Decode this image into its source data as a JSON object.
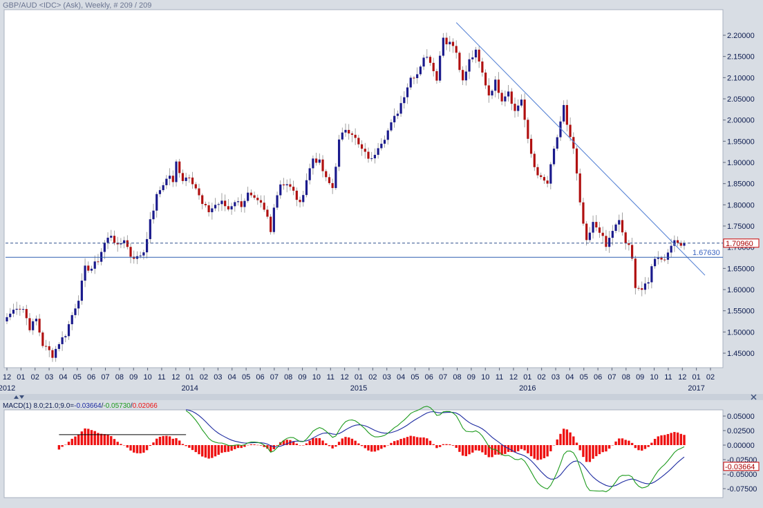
{
  "header": {
    "title": "GBP/AUD <IDC> (Ask), Weekly, # 209 / 209"
  },
  "colors": {
    "background": "#d8dde4",
    "panel": "#ffffff",
    "up_candle": "#1a1a8c",
    "down_candle": "#b01010",
    "trendline": "#5b86d6",
    "macd_line": "#1c2aa0",
    "signal_line": "#1c9a1c",
    "histogram": "#ee1111",
    "text": "#0b1a4e",
    "current_price_box": "#cc0000"
  },
  "chart_data": [
    {
      "type": "candlestick",
      "title": "GBP/AUD <IDC> (Ask), Weekly, # 209 / 209",
      "ylim": [
        1.43,
        2.24
      ],
      "y_ticks": [
        "2.20000",
        "2.15000",
        "2.10000",
        "2.05000",
        "2.00000",
        "1.95000",
        "1.90000",
        "1.85000",
        "1.80000",
        "1.75000",
        "1.70000",
        "1.65000",
        "1.60000",
        "1.55000",
        "1.50000",
        "1.45000"
      ],
      "x_month_labels": [
        "12",
        "01",
        "02",
        "03",
        "04",
        "05",
        "06",
        "07",
        "08",
        "09",
        "10",
        "11",
        "12",
        "01",
        "02",
        "03",
        "04",
        "05",
        "06",
        "07",
        "08",
        "09",
        "10",
        "11",
        "12",
        "01",
        "02",
        "03",
        "04",
        "05",
        "06",
        "07",
        "08",
        "09",
        "10",
        "11",
        "12",
        "01",
        "02",
        "03",
        "04",
        "05",
        "06",
        "07",
        "08",
        "09",
        "10",
        "11",
        "12",
        "01",
        "02"
      ],
      "x_year_labels": [
        {
          "label": "2012",
          "month_index": 0
        },
        {
          "label": "2014",
          "month_index": 13
        },
        {
          "label": "2015",
          "month_index": 25
        },
        {
          "label": "2016",
          "month_index": 37
        },
        {
          "label": "2017",
          "month_index": 49
        }
      ],
      "anchors": [
        [
          0,
          1.535
        ],
        [
          3,
          1.56
        ],
        [
          5,
          1.555
        ],
        [
          7,
          1.51
        ],
        [
          9,
          1.53
        ],
        [
          11,
          1.47
        ],
        [
          13,
          1.455
        ],
        [
          14,
          1.445
        ],
        [
          16,
          1.475
        ],
        [
          18,
          1.495
        ],
        [
          20,
          1.54
        ],
        [
          22,
          1.58
        ],
        [
          24,
          1.65
        ],
        [
          26,
          1.65
        ],
        [
          28,
          1.67
        ],
        [
          30,
          1.71
        ],
        [
          32,
          1.73
        ],
        [
          34,
          1.7
        ],
        [
          36,
          1.72
        ],
        [
          38,
          1.68
        ],
        [
          40,
          1.675
        ],
        [
          42,
          1.69
        ],
        [
          44,
          1.76
        ],
        [
          46,
          1.82
        ],
        [
          48,
          1.85
        ],
        [
          50,
          1.87
        ],
        [
          51,
          1.85
        ],
        [
          52,
          1.9
        ],
        [
          54,
          1.86
        ],
        [
          56,
          1.87
        ],
        [
          58,
          1.84
        ],
        [
          60,
          1.8
        ],
        [
          62,
          1.785
        ],
        [
          64,
          1.8
        ],
        [
          66,
          1.805
        ],
        [
          68,
          1.79
        ],
        [
          70,
          1.81
        ],
        [
          72,
          1.8
        ],
        [
          74,
          1.825
        ],
        [
          76,
          1.81
        ],
        [
          78,
          1.8
        ],
        [
          80,
          1.77
        ],
        [
          81,
          1.735
        ],
        [
          82,
          1.8
        ],
        [
          84,
          1.85
        ],
        [
          86,
          1.85
        ],
        [
          88,
          1.83
        ],
        [
          90,
          1.8
        ],
        [
          92,
          1.86
        ],
        [
          94,
          1.91
        ],
        [
          96,
          1.9
        ],
        [
          98,
          1.86
        ],
        [
          100,
          1.84
        ],
        [
          102,
          1.95
        ],
        [
          104,
          1.98
        ],
        [
          106,
          1.97
        ],
        [
          108,
          1.94
        ],
        [
          110,
          1.92
        ],
        [
          112,
          1.905
        ],
        [
          114,
          1.94
        ],
        [
          116,
          1.96
        ],
        [
          118,
          1.99
        ],
        [
          120,
          2.02
        ],
        [
          122,
          2.06
        ],
        [
          124,
          2.1
        ],
        [
          126,
          2.11
        ],
        [
          128,
          2.15
        ],
        [
          130,
          2.14
        ],
        [
          132,
          2.1
        ],
        [
          134,
          2.2
        ],
        [
          135,
          2.18
        ],
        [
          136,
          2.19
        ],
        [
          138,
          2.16
        ],
        [
          140,
          2.09
        ],
        [
          142,
          2.14
        ],
        [
          144,
          2.16
        ],
        [
          146,
          2.11
        ],
        [
          148,
          2.06
        ],
        [
          150,
          2.09
        ],
        [
          152,
          2.05
        ],
        [
          154,
          2.07
        ],
        [
          156,
          2.02
        ],
        [
          158,
          2.05
        ],
        [
          160,
          1.95
        ],
        [
          162,
          1.89
        ],
        [
          164,
          1.86
        ],
        [
          166,
          1.85
        ],
        [
          168,
          1.93
        ],
        [
          170,
          1.99
        ],
        [
          171,
          2.03
        ],
        [
          172,
          1.99
        ],
        [
          174,
          1.93
        ],
        [
          175,
          1.87
        ],
        [
          176,
          1.8
        ],
        [
          178,
          1.71
        ],
        [
          180,
          1.755
        ],
        [
          182,
          1.74
        ],
        [
          184,
          1.7
        ],
        [
          186,
          1.74
        ],
        [
          188,
          1.76
        ],
        [
          190,
          1.71
        ],
        [
          191,
          1.7
        ],
        [
          192,
          1.67
        ],
        [
          193,
          1.61
        ],
        [
          195,
          1.6
        ],
        [
          197,
          1.615
        ],
        [
          198,
          1.66
        ],
        [
          200,
          1.68
        ],
        [
          202,
          1.67
        ],
        [
          204,
          1.71
        ]
      ],
      "trendline": {
        "start": [
          138,
          2.23
        ],
        "end": [
          208,
          1.66
        ]
      },
      "horizontal_line": {
        "value": 1.6763,
        "label": "1.67630"
      },
      "current_price": {
        "value": 1.7096,
        "label": "1.70960"
      }
    },
    {
      "type": "line",
      "title": "MACD(1) 8.0;21.0;9.0=-0.03664/-0.05730/0.02066",
      "legend": {
        "prefix": "MACD(1) 8.0;21.0;9.0=",
        "macd": "-0.03664",
        "signal": "-0.05730",
        "histogram": "0.02066"
      },
      "ylim": [
        -0.088,
        0.068
      ],
      "y_ticks": [
        "0.05000",
        "0.02500",
        "0.00000",
        "-0.02500",
        "-0.05000",
        "-0.07500"
      ],
      "current_value_label": "-0.03664",
      "zero_segment": {
        "value": 0.018,
        "x_range": [
          16,
          55
        ]
      }
    }
  ]
}
